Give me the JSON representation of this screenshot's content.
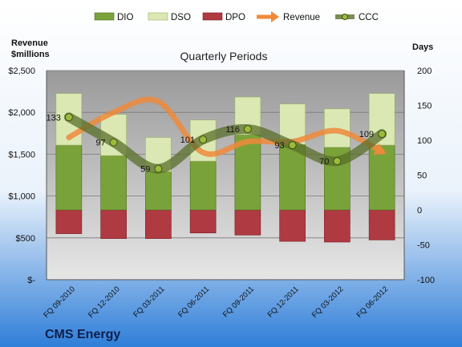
{
  "company": "CMS Energy",
  "chart_data": {
    "type": "bar",
    "title": "Quarterly Periods",
    "left_axis_label": [
      "Revenue",
      "$millions"
    ],
    "right_axis_label": "Days",
    "left_ticks": [
      "$-",
      "$500",
      "$1,000",
      "$1,500",
      "$2,000",
      "$2,500"
    ],
    "right_ticks": [
      "-100",
      "-50",
      "0",
      "50",
      "100",
      "150",
      "200"
    ],
    "left_range": [
      0,
      2500
    ],
    "right_range": [
      -100,
      200
    ],
    "categories": [
      "FQ 09-2010",
      "FQ 12-2010",
      "FQ 03-2011",
      "FQ 06-2011",
      "FQ 09-2011",
      "FQ 12-2011",
      "FQ 03-2012",
      "FQ 06-2012"
    ],
    "series": [
      {
        "name": "DIO",
        "axis": "right",
        "kind": "bar",
        "color": "#7aa23a",
        "values": [
          93,
          78,
          55,
          70,
          108,
          94,
          90,
          93
        ]
      },
      {
        "name": "DSO",
        "axis": "right",
        "kind": "bar",
        "color": "#dbe8b4",
        "values": [
          74,
          59,
          49,
          59,
          54,
          58,
          55,
          74
        ]
      },
      {
        "name": "DPO",
        "axis": "right",
        "kind": "bar",
        "color": "#b03a42",
        "values": [
          -34,
          -41,
          -41,
          -33,
          -36,
          -45,
          -46,
          -43
        ]
      },
      {
        "name": "Revenue",
        "axis": "left",
        "kind": "line",
        "color": "#ef8a3c",
        "values": [
          1700,
          2000,
          2130,
          1520,
          1650,
          1650,
          1780,
          1530
        ]
      },
      {
        "name": "CCC",
        "axis": "right",
        "kind": "line",
        "color": "#5a6f2a",
        "values": [
          133,
          97,
          59,
          101,
          116,
          93,
          70,
          109
        ]
      }
    ],
    "ccc_labels": [
      "133",
      "97",
      "59",
      "101",
      "116",
      "93",
      "70",
      "109"
    ],
    "legend_position": "top",
    "grid": true
  }
}
